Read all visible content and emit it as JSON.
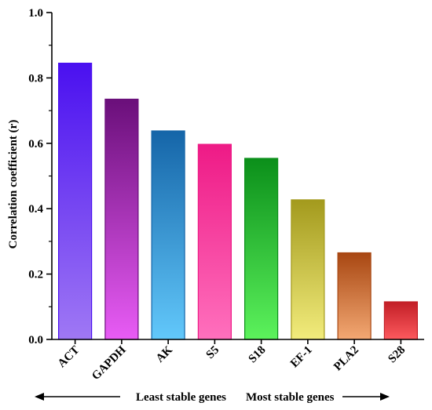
{
  "chart_data": {
    "type": "bar",
    "categories": [
      "ACT",
      "GAPDH",
      "AK",
      "S5",
      "S18",
      "EF-1",
      "PLA2",
      "S28"
    ],
    "values": [
      0.845,
      0.735,
      0.638,
      0.597,
      0.554,
      0.427,
      0.265,
      0.115
    ],
    "ylabel": "Correlation coefficient (r)",
    "xlabel": "",
    "ylim": [
      0.0,
      1.0
    ],
    "yticks": [
      "0.0",
      "0.2",
      "0.4",
      "0.6",
      "0.8",
      "1.0"
    ],
    "grid": false,
    "bar_gradients": [
      {
        "top": "#4a10f0",
        "bottom": "#9f78f4"
      },
      {
        "top": "#6a0f7a",
        "bottom": "#e85cf5"
      },
      {
        "top": "#1565a8",
        "bottom": "#62c8fb"
      },
      {
        "top": "#ee1a86",
        "bottom": "#ff70bd"
      },
      {
        "top": "#0b8f1a",
        "bottom": "#5cf25c"
      },
      {
        "top": "#a39a1d",
        "bottom": "#f2ec7c"
      },
      {
        "top": "#a84712",
        "bottom": "#f3a873"
      },
      {
        "top": "#c21e26",
        "bottom": "#fd5a5e"
      }
    ],
    "annotations": {
      "least_stable": "Least stable genes",
      "most_stable": "Most stable genes"
    }
  }
}
